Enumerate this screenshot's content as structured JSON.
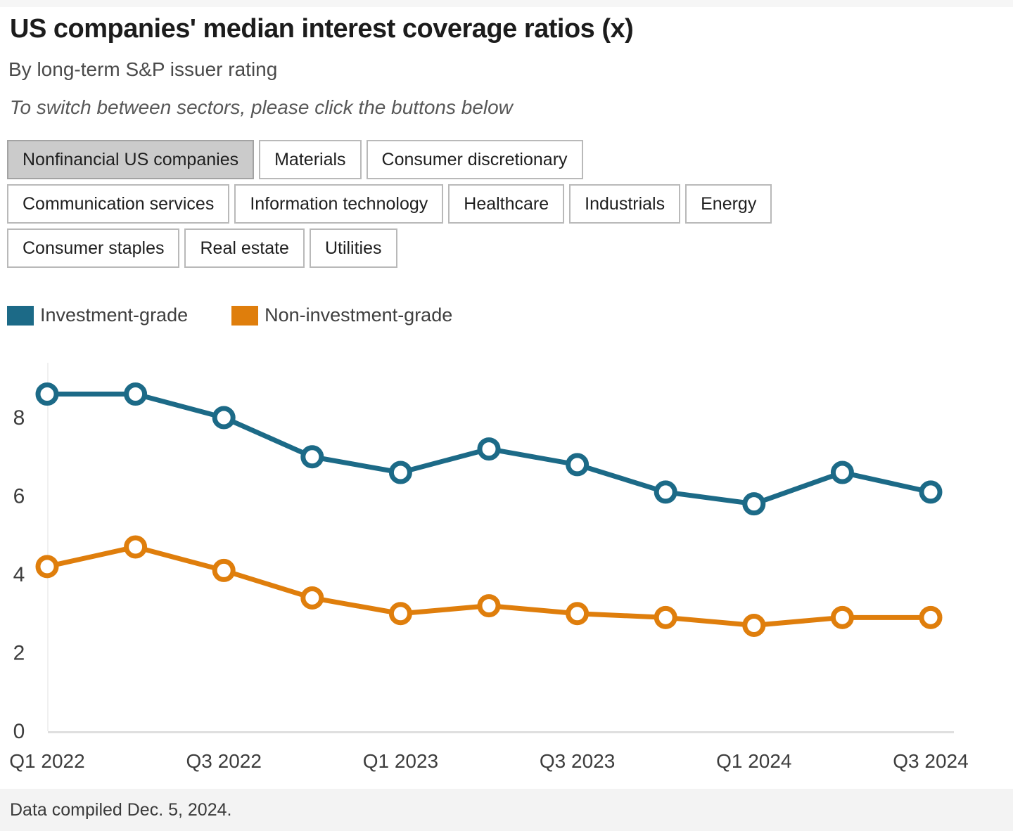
{
  "header": {
    "title": "US companies' median interest coverage ratios (x)",
    "subtitle": "By long-term S&P issuer rating",
    "note": "To switch between sectors, please click the buttons below"
  },
  "buttons": {
    "active_index": 0,
    "items": [
      {
        "label": "Nonfinancial US companies"
      },
      {
        "label": "Materials"
      },
      {
        "label": "Consumer discretionary"
      },
      {
        "label": "Communication services"
      },
      {
        "label": "Information technology"
      },
      {
        "label": "Healthcare"
      },
      {
        "label": "Industrials"
      },
      {
        "label": "Energy"
      },
      {
        "label": "Consumer staples"
      },
      {
        "label": "Real estate"
      },
      {
        "label": "Utilities"
      }
    ]
  },
  "legend": [
    {
      "label": "Investment-grade",
      "color": "#1c6a87"
    },
    {
      "label": "Non-investment-grade",
      "color": "#df7e0c"
    }
  ],
  "chart_data": {
    "type": "line",
    "x": [
      "Q1 2022",
      "Q2 2022",
      "Q3 2022",
      "Q4 2022",
      "Q1 2023",
      "Q2 2023",
      "Q3 2023",
      "Q4 2023",
      "Q1 2024",
      "Q2 2024",
      "Q3 2024"
    ],
    "x_tick_labels": [
      "Q1 2022",
      "Q3 2022",
      "Q1 2023",
      "Q3 2023",
      "Q1 2024",
      "Q3 2024"
    ],
    "series": [
      {
        "name": "Investment-grade",
        "color": "#1c6a87",
        "values": [
          8.6,
          8.6,
          8.0,
          7.0,
          6.6,
          7.2,
          6.8,
          6.1,
          5.8,
          6.6,
          6.1
        ]
      },
      {
        "name": "Non-investment-grade",
        "color": "#df7e0c",
        "values": [
          4.2,
          4.7,
          4.1,
          3.4,
          3.0,
          3.2,
          3.0,
          2.9,
          2.7,
          2.9,
          2.9
        ]
      }
    ],
    "yticks": [
      0,
      2,
      4,
      6,
      8
    ],
    "ylim": [
      0,
      9
    ],
    "grid": false,
    "legend_position": "top-left",
    "marker": "open-circle"
  },
  "footer": {
    "text": "Data compiled Dec. 5, 2024."
  }
}
